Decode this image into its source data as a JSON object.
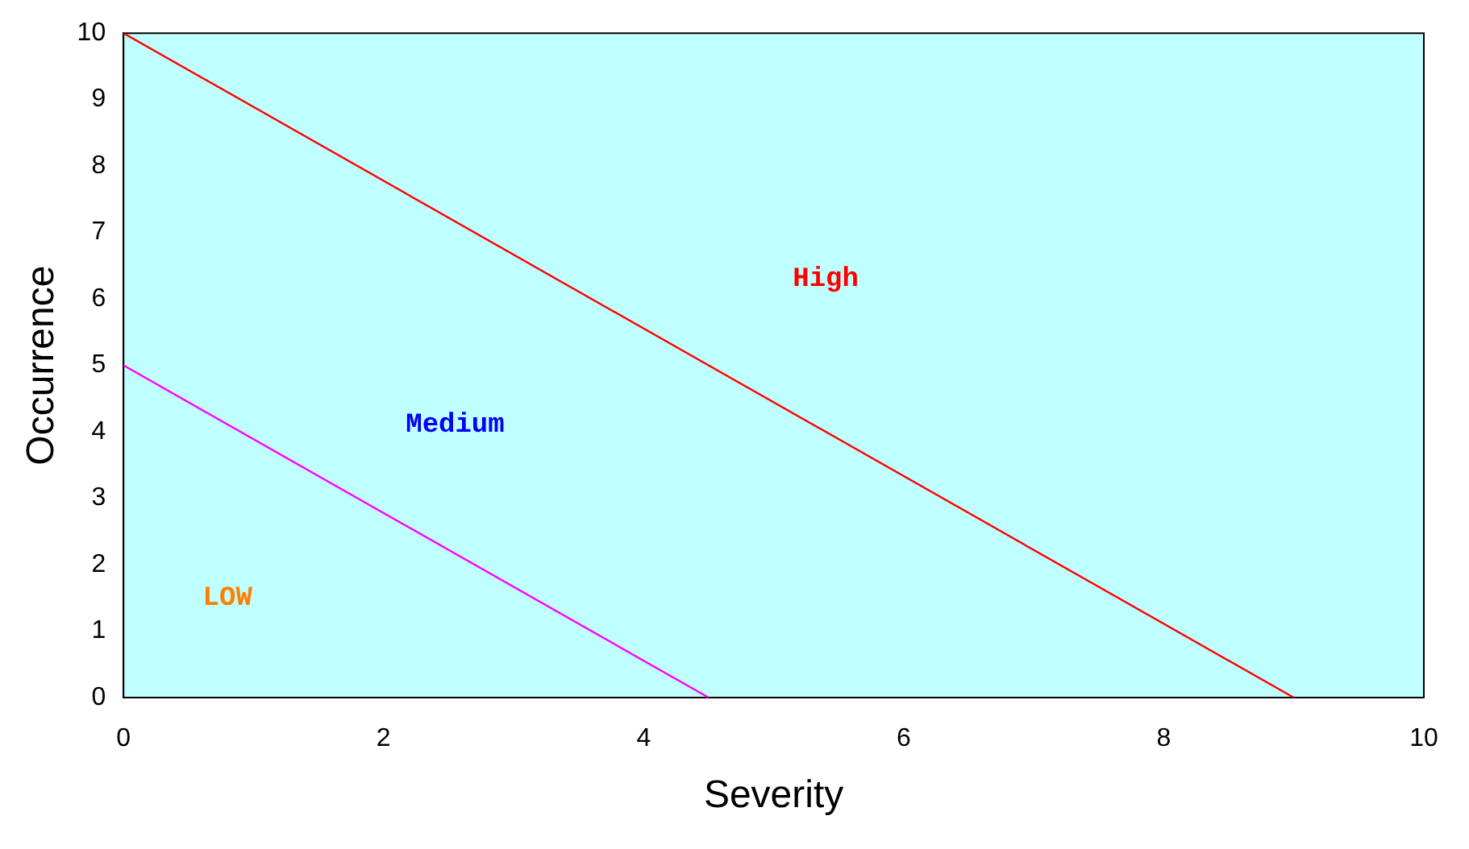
{
  "chart_data": {
    "type": "line",
    "xlabel": "Severity",
    "ylabel": "Occurrence",
    "xlim": [
      0,
      10
    ],
    "xticks": [
      0,
      2,
      4,
      6,
      8,
      10
    ],
    "ylim": [
      0,
      10
    ],
    "yticks": [
      0,
      1,
      2,
      3,
      4,
      5,
      6,
      7,
      8,
      9,
      10
    ],
    "grid": false,
    "legend": false,
    "marker": "none",
    "line_style": "solid",
    "series": [
      {
        "color": "#ff0000",
        "x": [
          0,
          9
        ],
        "values": [
          10,
          0
        ]
      },
      {
        "color": "#ff00ff",
        "x": [
          0,
          4.5
        ],
        "values": [
          5,
          0
        ]
      }
    ],
    "annotations": [
      "High",
      "Medium",
      "LOW"
    ]
  }
}
